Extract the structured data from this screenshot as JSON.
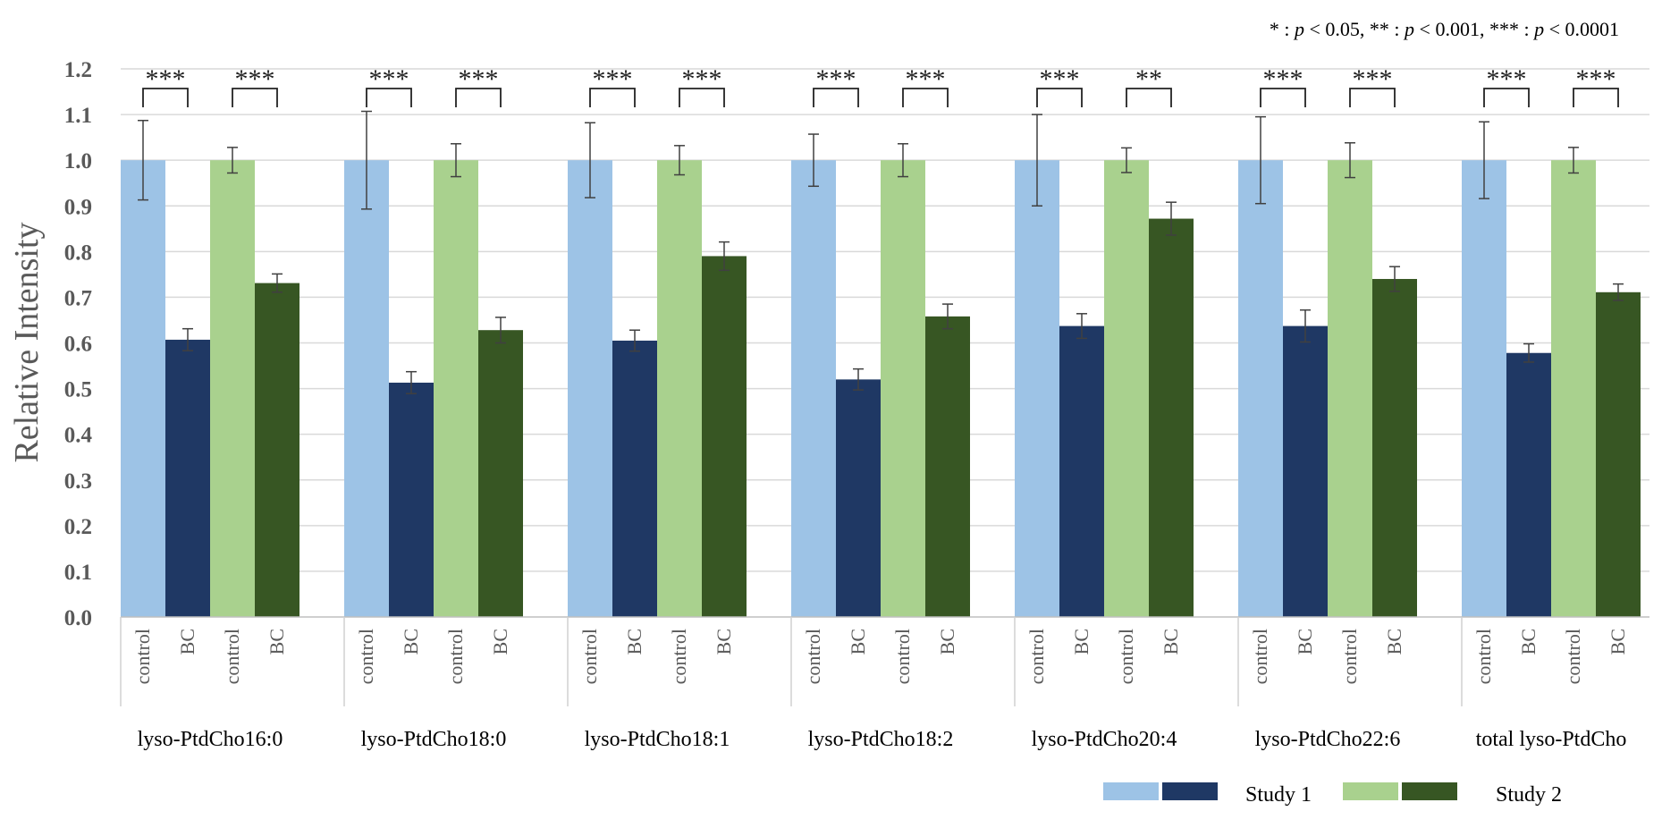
{
  "chart_data": {
    "type": "bar",
    "title": "",
    "ylabel": "Relative Intensity",
    "xlabel": "",
    "ylim": [
      0,
      1.2
    ],
    "yticks": [
      "0.0",
      "0.1",
      "0.2",
      "0.3",
      "0.4",
      "0.5",
      "0.6",
      "0.7",
      "0.8",
      "0.9",
      "1.0",
      "1.1",
      "1.2"
    ],
    "significance_note": "* : p < 0.05,   ** : p < 0.001,   *** : p < 0.0001",
    "series_labels": [
      "control",
      "BC",
      "control",
      "BC"
    ],
    "series_colors": [
      "#9DC3E6",
      "#1F3864",
      "#A9D18E",
      "#375623"
    ],
    "legend": [
      {
        "label": "Study 1",
        "colors": [
          "#9DC3E6",
          "#1F3864"
        ]
      },
      {
        "label": "Study 2",
        "colors": [
          "#A9D18E",
          "#375623"
        ]
      }
    ],
    "groups": [
      {
        "name": "lyso-PtdCho16:0",
        "values": [
          1.0,
          0.607,
          1.0,
          0.731
        ],
        "errors": [
          0.087,
          0.024,
          0.028,
          0.02
        ],
        "sig": [
          "***",
          "***"
        ]
      },
      {
        "name": "lyso-PtdCho18:0",
        "values": [
          1.0,
          0.513,
          1.0,
          0.628
        ],
        "errors": [
          0.107,
          0.024,
          0.036,
          0.028
        ],
        "sig": [
          "***",
          "***"
        ]
      },
      {
        "name": "lyso-PtdCho18:1",
        "values": [
          1.0,
          0.605,
          1.0,
          0.79
        ],
        "errors": [
          0.082,
          0.023,
          0.032,
          0.031
        ],
        "sig": [
          "***",
          "***"
        ]
      },
      {
        "name": "lyso-PtdCho18:2",
        "values": [
          1.0,
          0.52,
          1.0,
          0.658
        ],
        "errors": [
          0.057,
          0.023,
          0.036,
          0.027
        ],
        "sig": [
          "***",
          "***"
        ]
      },
      {
        "name": "lyso-PtdCho20:4",
        "values": [
          1.0,
          0.637,
          1.0,
          0.872
        ],
        "errors": [
          0.1,
          0.027,
          0.027,
          0.036
        ],
        "sig": [
          "***",
          "**"
        ]
      },
      {
        "name": "lyso-PtdCho22:6",
        "values": [
          1.0,
          0.637,
          1.0,
          0.74
        ],
        "errors": [
          0.095,
          0.035,
          0.038,
          0.027
        ],
        "sig": [
          "***",
          "***"
        ]
      },
      {
        "name": "total lyso-PtdCho",
        "values": [
          1.0,
          0.578,
          1.0,
          0.711
        ],
        "errors": [
          0.084,
          0.02,
          0.028,
          0.018
        ],
        "sig": [
          "***",
          "***"
        ]
      }
    ]
  }
}
